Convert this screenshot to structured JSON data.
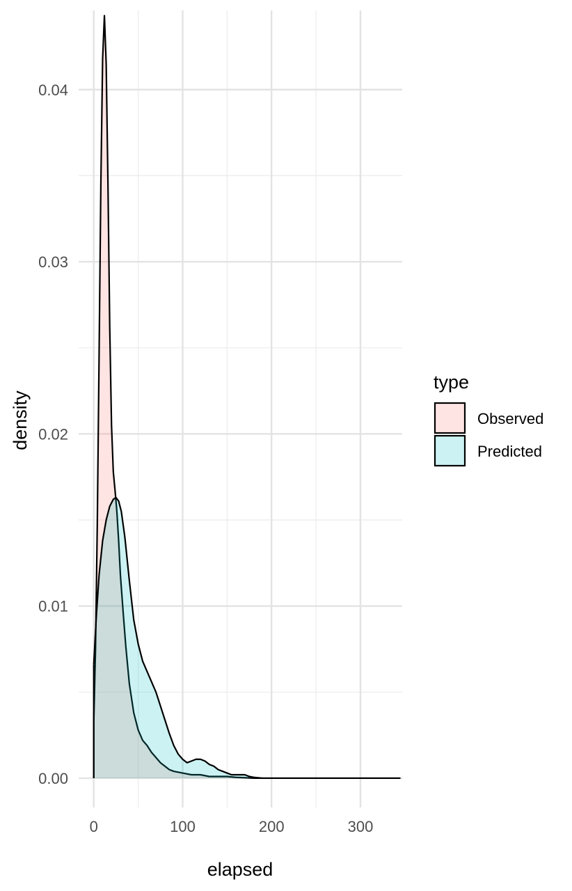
{
  "chart_data": {
    "type": "area",
    "title": "",
    "xlabel": "elapsed",
    "ylabel": "density",
    "xlim": [
      -17,
      347
    ],
    "ylim": [
      -0.0017,
      0.0446
    ],
    "x_ticks": [
      0,
      100,
      200,
      300
    ],
    "x_tick_labels": [
      "0",
      "100",
      "200",
      "300"
    ],
    "y_ticks": [
      0.0,
      0.01,
      0.02,
      0.03,
      0.04
    ],
    "y_tick_labels": [
      "0.00",
      "0.01",
      "0.02",
      "0.03",
      "0.04"
    ],
    "grid": true,
    "legend": {
      "title": "type",
      "position": "right"
    },
    "series": [
      {
        "name": "Observed",
        "fill": "#F8766D",
        "points": [
          [
            0,
            0.0032
          ],
          [
            2,
            0.0075
          ],
          [
            4,
            0.0148
          ],
          [
            6,
            0.0245
          ],
          [
            8,
            0.0345
          ],
          [
            10,
            0.0418
          ],
          [
            12,
            0.0443
          ],
          [
            14,
            0.0415
          ],
          [
            16,
            0.0345
          ],
          [
            18,
            0.0262
          ],
          [
            20,
            0.0205
          ],
          [
            22,
            0.0178
          ],
          [
            24,
            0.0167
          ],
          [
            26,
            0.0155
          ],
          [
            28,
            0.0138
          ],
          [
            30,
            0.0118
          ],
          [
            33,
            0.0097
          ],
          [
            36,
            0.0077
          ],
          [
            40,
            0.0055
          ],
          [
            45,
            0.0038
          ],
          [
            50,
            0.0028
          ],
          [
            55,
            0.0022
          ],
          [
            60,
            0.0019
          ],
          [
            65,
            0.0015
          ],
          [
            70,
            0.0012
          ],
          [
            75,
            0.0009
          ],
          [
            80,
            0.0007
          ],
          [
            85,
            0.0005
          ],
          [
            90,
            0.0004
          ],
          [
            100,
            0.0003
          ],
          [
            110,
            0.0002
          ],
          [
            120,
            0.0002
          ],
          [
            130,
            0.0001
          ],
          [
            140,
            0.0001
          ],
          [
            150,
            0.0001
          ],
          [
            160,
            5e-05
          ],
          [
            170,
            3e-05
          ],
          [
            180,
            0.0
          ],
          [
            200,
            0.0
          ],
          [
            250,
            0.0
          ],
          [
            300,
            0.0
          ],
          [
            345,
            0.0
          ]
        ]
      },
      {
        "name": "Predicted",
        "fill": "#00BFC4",
        "points": [
          [
            0,
            0.0066
          ],
          [
            3,
            0.0095
          ],
          [
            6,
            0.0118
          ],
          [
            10,
            0.0138
          ],
          [
            14,
            0.015
          ],
          [
            18,
            0.0158
          ],
          [
            22,
            0.0162
          ],
          [
            25,
            0.0163
          ],
          [
            28,
            0.0161
          ],
          [
            31,
            0.0155
          ],
          [
            35,
            0.014
          ],
          [
            40,
            0.0115
          ],
          [
            45,
            0.0092
          ],
          [
            50,
            0.0078
          ],
          [
            55,
            0.0068
          ],
          [
            60,
            0.0062
          ],
          [
            65,
            0.0056
          ],
          [
            70,
            0.005
          ],
          [
            75,
            0.0042
          ],
          [
            80,
            0.0034
          ],
          [
            85,
            0.0026
          ],
          [
            90,
            0.0019
          ],
          [
            95,
            0.0014
          ],
          [
            100,
            0.0011
          ],
          [
            105,
            0.0009
          ],
          [
            110,
            0.001
          ],
          [
            115,
            0.0011
          ],
          [
            120,
            0.0011
          ],
          [
            125,
            0.001
          ],
          [
            130,
            0.0008
          ],
          [
            135,
            0.0007
          ],
          [
            140,
            0.0005
          ],
          [
            145,
            0.0004
          ],
          [
            150,
            0.0003
          ],
          [
            155,
            0.0002
          ],
          [
            160,
            0.0002
          ],
          [
            165,
            0.0002
          ],
          [
            170,
            0.0002
          ],
          [
            175,
            0.0001
          ],
          [
            180,
            5e-05
          ],
          [
            190,
            0.0
          ],
          [
            200,
            0.0
          ],
          [
            250,
            0.0
          ],
          [
            300,
            0.0
          ],
          [
            345,
            0.0
          ]
        ]
      }
    ]
  }
}
